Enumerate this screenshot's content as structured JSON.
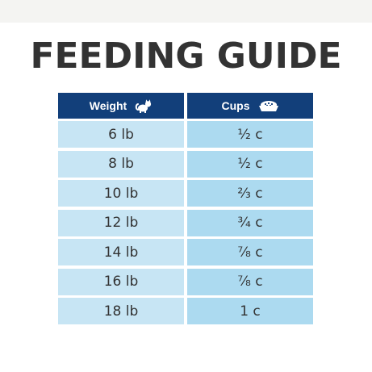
{
  "title": "FEEDING GUIDE",
  "table": {
    "headers": {
      "weight": {
        "label": "Weight",
        "icon": "cat-icon"
      },
      "cups": {
        "label": "Cups",
        "icon": "food-bowl-icon"
      }
    },
    "rows": [
      {
        "weight": "6 lb",
        "cups": "½ c"
      },
      {
        "weight": "8 lb",
        "cups": "½ c"
      },
      {
        "weight": "10 lb",
        "cups": "⅔ c"
      },
      {
        "weight": "12 lb",
        "cups": "¾ c"
      },
      {
        "weight": "14 lb",
        "cups": "⅞ c"
      },
      {
        "weight": "16 lb",
        "cups": "⅞ c"
      },
      {
        "weight": "18 lb",
        "cups": "1 c"
      }
    ]
  },
  "colors": {
    "header_bg": "#123f7a",
    "weight_col_bg": "#c7e5f4",
    "cups_col_bg": "#acdaf0",
    "title_color": "#333333"
  }
}
